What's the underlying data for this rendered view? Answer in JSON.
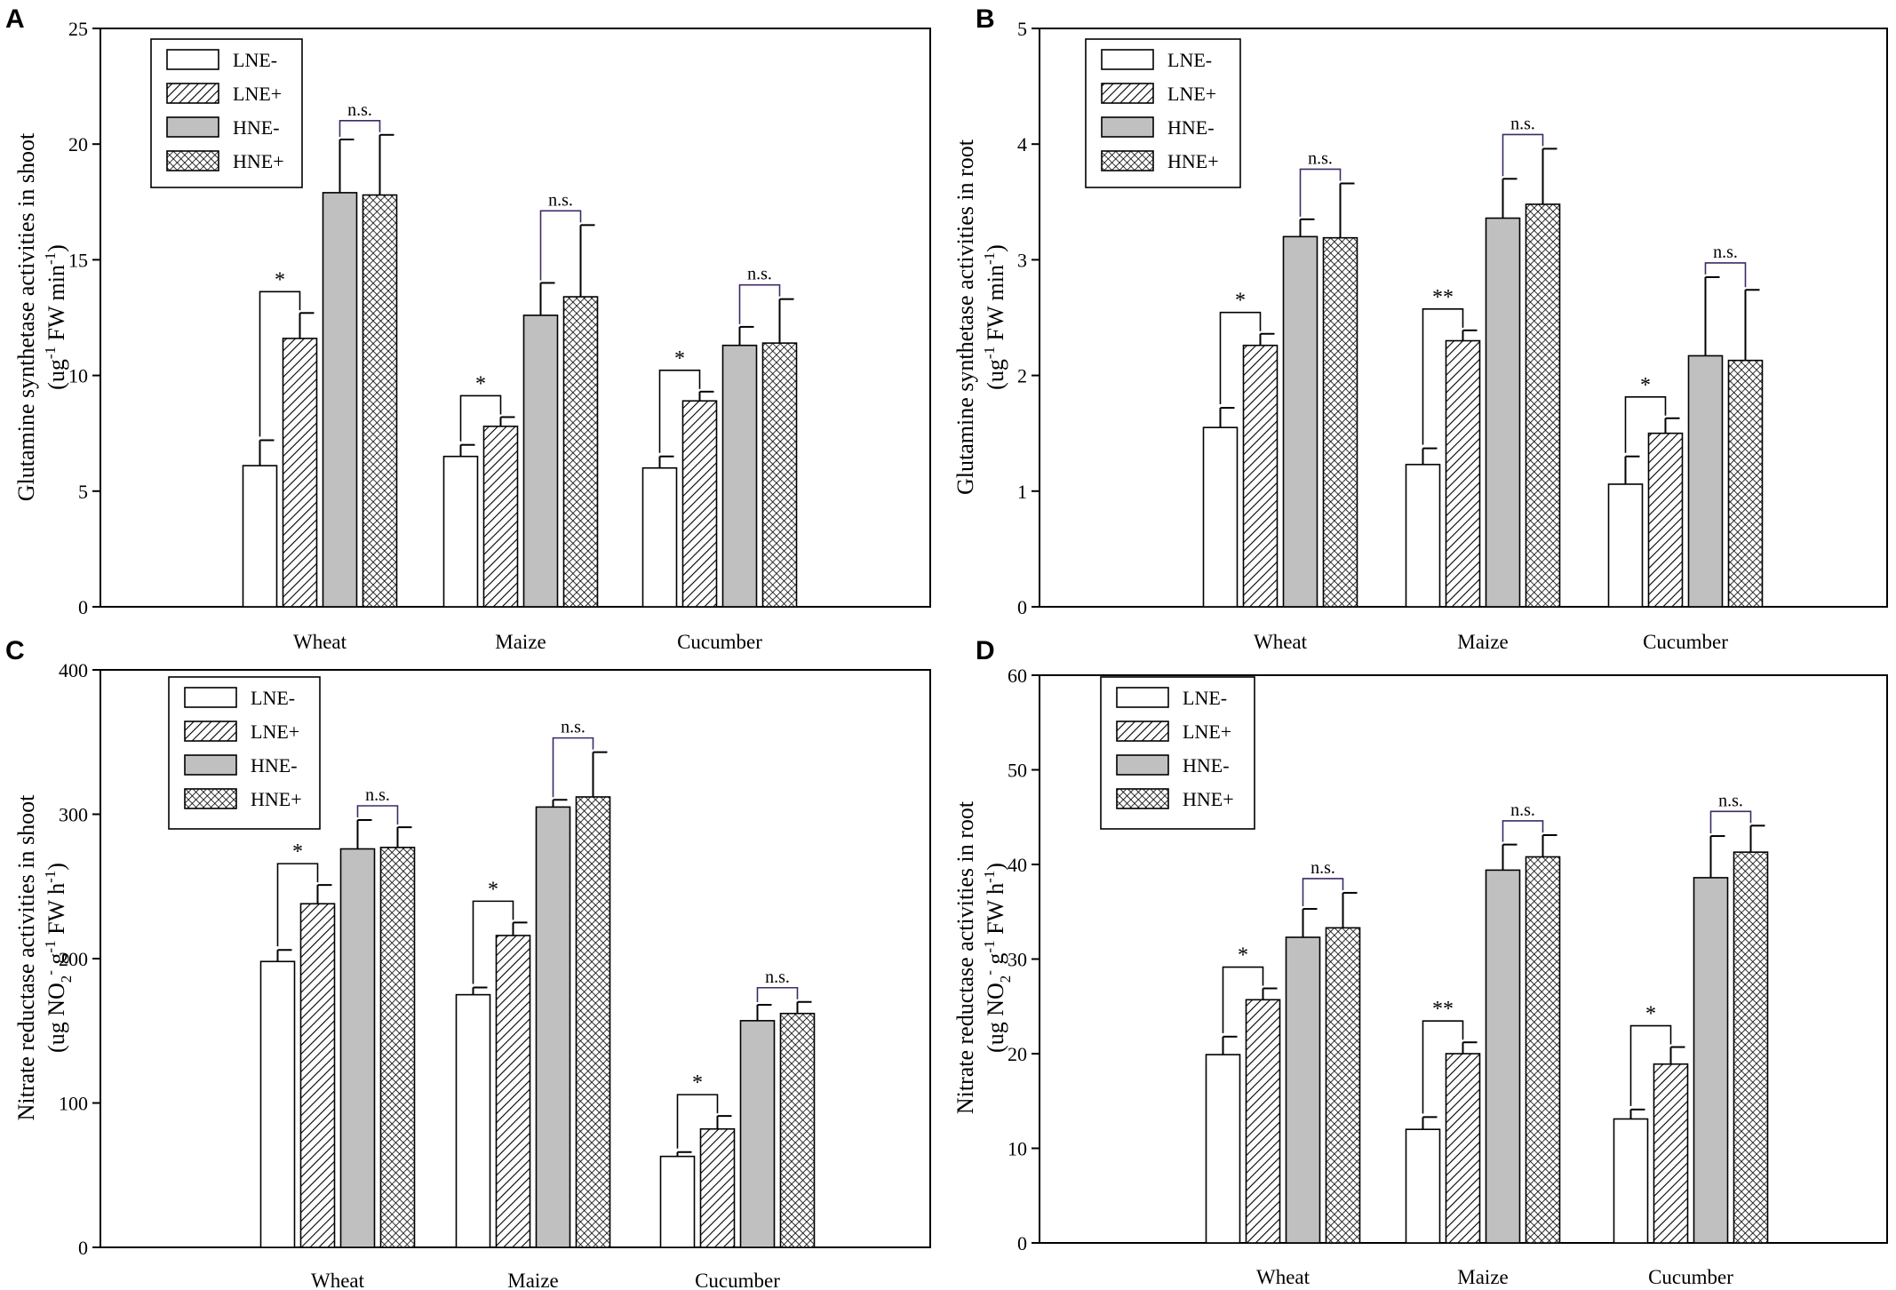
{
  "chart_data": [
    {
      "panel": "A",
      "type": "bar",
      "categories": [
        "Wheat",
        "Maize",
        "Cucumber"
      ],
      "legend": [
        "LNE-",
        "LNE+",
        "HNE-",
        "HNE+"
      ],
      "legend_position": "top-left",
      "ylabel_line1": "Glutamine synthetase activities in shoot",
      "ylabel_line2": [
        "(ug",
        "-1",
        " FW min",
        "-1",
        ")"
      ],
      "ylim": [
        0,
        25
      ],
      "yticks": [
        0,
        5,
        10,
        15,
        20,
        25
      ],
      "series": [
        {
          "name": "LNE-",
          "values": [
            6.1,
            6.5,
            6.0
          ],
          "errors": [
            1.1,
            0.5,
            0.5
          ]
        },
        {
          "name": "LNE+",
          "values": [
            11.6,
            7.8,
            8.9
          ],
          "errors": [
            1.1,
            0.4,
            0.4
          ]
        },
        {
          "name": "HNE-",
          "values": [
            17.9,
            12.6,
            11.3
          ],
          "errors": [
            2.3,
            1.4,
            0.8
          ]
        },
        {
          "name": "HNE+",
          "values": [
            17.8,
            13.4,
            11.4
          ],
          "errors": [
            2.6,
            3.1,
            1.9
          ]
        }
      ],
      "annotations": [
        {
          "category": 0,
          "from": 0,
          "to": 1,
          "label": "*"
        },
        {
          "category": 0,
          "from": 2,
          "to": 3,
          "label": "n.s."
        },
        {
          "category": 1,
          "from": 0,
          "to": 1,
          "label": "*"
        },
        {
          "category": 1,
          "from": 2,
          "to": 3,
          "label": "n.s."
        },
        {
          "category": 2,
          "from": 0,
          "to": 1,
          "label": "*"
        },
        {
          "category": 2,
          "from": 2,
          "to": 3,
          "label": "n.s."
        }
      ]
    },
    {
      "panel": "B",
      "type": "bar",
      "categories": [
        "Wheat",
        "Maize",
        "Cucumber"
      ],
      "legend": [
        "LNE-",
        "LNE+",
        "HNE-",
        "HNE+"
      ],
      "legend_position": "top-left",
      "ylabel_line1": "Glutamine synthetase activities in root",
      "ylabel_line2": [
        "(ug",
        "-1",
        " FW min",
        "-1",
        ")"
      ],
      "ylim": [
        0,
        5
      ],
      "yticks": [
        0,
        1,
        2,
        3,
        4,
        5
      ],
      "series": [
        {
          "name": "LNE-",
          "values": [
            1.55,
            1.23,
            1.06
          ],
          "errors": [
            0.17,
            0.14,
            0.24
          ]
        },
        {
          "name": "LNE+",
          "values": [
            2.26,
            2.3,
            1.5
          ],
          "errors": [
            0.1,
            0.09,
            0.13
          ]
        },
        {
          "name": "HNE-",
          "values": [
            3.2,
            3.36,
            2.17
          ],
          "errors": [
            0.15,
            0.34,
            0.68
          ]
        },
        {
          "name": "HNE+",
          "values": [
            3.19,
            3.48,
            2.13
          ],
          "errors": [
            0.47,
            0.48,
            0.61
          ]
        }
      ],
      "annotations": [
        {
          "category": 0,
          "from": 0,
          "to": 1,
          "label": "*"
        },
        {
          "category": 0,
          "from": 2,
          "to": 3,
          "label": "n.s."
        },
        {
          "category": 1,
          "from": 0,
          "to": 1,
          "label": "**"
        },
        {
          "category": 1,
          "from": 2,
          "to": 3,
          "label": "n.s."
        },
        {
          "category": 2,
          "from": 0,
          "to": 1,
          "label": "*"
        },
        {
          "category": 2,
          "from": 2,
          "to": 3,
          "label": "n.s."
        }
      ]
    },
    {
      "panel": "C",
      "type": "bar",
      "categories": [
        "Wheat",
        "Maize",
        "Cucumber"
      ],
      "legend": [
        "LNE-",
        "LNE+",
        "HNE-",
        "HNE+"
      ],
      "legend_position": "top-left",
      "ylabel_line1": "Nitrate reductase activities in shoot",
      "ylabel_line2": [
        "(ug NO",
        "2",
        "-",
        " g",
        "-1",
        " FW h",
        "-1",
        ")"
      ],
      "ylim": [
        0,
        400
      ],
      "yticks": [
        0,
        100,
        200,
        300,
        400
      ],
      "series": [
        {
          "name": "LNE-",
          "values": [
            198,
            175,
            63
          ],
          "errors": [
            8,
            5,
            3
          ]
        },
        {
          "name": "LNE+",
          "values": [
            238,
            216,
            82
          ],
          "errors": [
            13,
            9,
            9
          ]
        },
        {
          "name": "HNE-",
          "values": [
            276,
            305,
            157
          ],
          "errors": [
            20,
            5,
            11
          ]
        },
        {
          "name": "HNE+",
          "values": [
            277,
            312,
            162
          ],
          "errors": [
            14,
            31,
            8
          ]
        }
      ],
      "annotations": [
        {
          "category": 0,
          "from": 0,
          "to": 1,
          "label": "*"
        },
        {
          "category": 0,
          "from": 2,
          "to": 3,
          "label": "n.s."
        },
        {
          "category": 1,
          "from": 0,
          "to": 1,
          "label": "*"
        },
        {
          "category": 1,
          "from": 2,
          "to": 3,
          "label": "n.s."
        },
        {
          "category": 2,
          "from": 0,
          "to": 1,
          "label": "*"
        },
        {
          "category": 2,
          "from": 2,
          "to": 3,
          "label": "n.s."
        }
      ]
    },
    {
      "panel": "D",
      "type": "bar",
      "categories": [
        "Wheat",
        "Maize",
        "Cucumber"
      ],
      "legend": [
        "LNE-",
        "LNE+",
        "HNE-",
        "HNE+"
      ],
      "legend_position": "top-left",
      "ylabel_line1": "Nitrate reductase activities in root",
      "ylabel_line2": [
        "(ug NO",
        "2",
        "-",
        " g",
        "-1",
        " FW h",
        "-1",
        ")"
      ],
      "ylim": [
        0,
        60
      ],
      "yticks": [
        0,
        10,
        20,
        30,
        40,
        50,
        60
      ],
      "series": [
        {
          "name": "LNE-",
          "values": [
            19.9,
            12.0,
            13.1
          ],
          "errors": [
            1.9,
            1.3,
            1.0
          ]
        },
        {
          "name": "LNE+",
          "values": [
            25.7,
            20.0,
            18.9
          ],
          "errors": [
            1.2,
            1.2,
            1.8
          ]
        },
        {
          "name": "HNE-",
          "values": [
            32.3,
            39.4,
            38.6
          ],
          "errors": [
            3.0,
            2.7,
            4.4
          ]
        },
        {
          "name": "HNE+",
          "values": [
            33.3,
            40.8,
            41.3
          ],
          "errors": [
            3.7,
            2.3,
            2.8
          ]
        }
      ],
      "annotations": [
        {
          "category": 0,
          "from": 0,
          "to": 1,
          "label": "*"
        },
        {
          "category": 0,
          "from": 2,
          "to": 3,
          "label": "n.s."
        },
        {
          "category": 1,
          "from": 0,
          "to": 1,
          "label": "**"
        },
        {
          "category": 1,
          "from": 2,
          "to": 3,
          "label": "n.s."
        },
        {
          "category": 2,
          "from": 0,
          "to": 1,
          "label": "*"
        },
        {
          "category": 2,
          "from": 2,
          "to": 3,
          "label": "n.s."
        }
      ]
    }
  ],
  "colors": {
    "axis": "#000000",
    "bar_outline": "#000000",
    "fill_open": "#ffffff",
    "fill_gray": "#c0c0c0",
    "bracket_ns": "#3d2a66"
  }
}
